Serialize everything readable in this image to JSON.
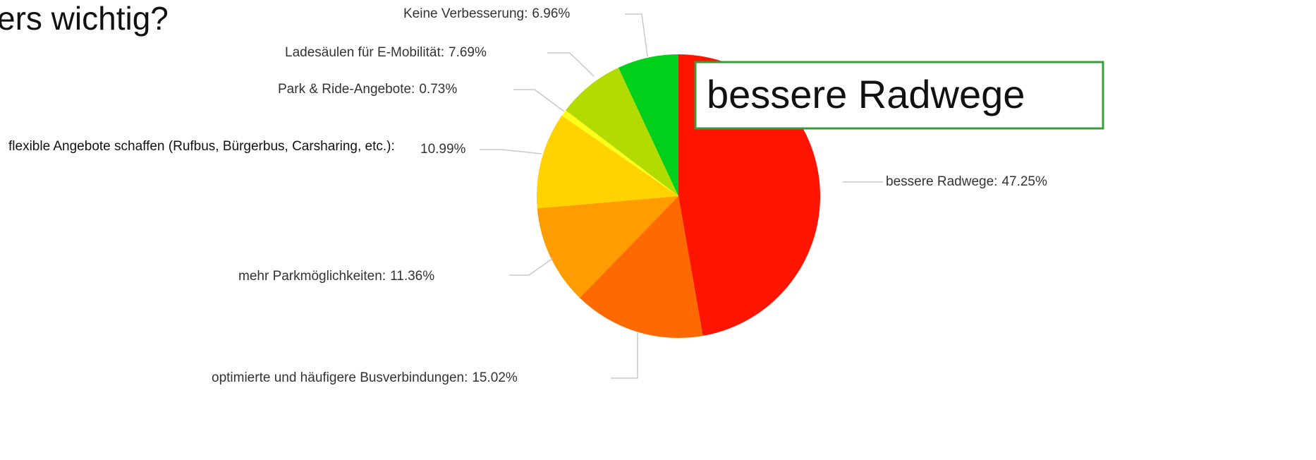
{
  "heading": "ers wichtig?",
  "callout": "bessere Radwege",
  "chart_data": {
    "type": "pie",
    "categories": [
      "bessere Radwege:",
      "optimierte und häufigere Busverbindungen:",
      "mehr Parkmöglichkeiten:",
      "flexible Angebote schaffen (Rufbus, Bürgerbus, Carsharing, etc.):",
      "Park & Ride-Angebote:",
      "Ladesäulen für E-Mobilität:",
      "Keine Verbesserung:"
    ],
    "values": [
      47.25,
      15.02,
      11.36,
      10.99,
      0.73,
      7.69,
      6.96
    ],
    "value_labels": [
      "47.25%",
      "15.02%",
      "11.36%",
      "10.99%",
      "0.73%",
      "7.69%",
      "6.96%"
    ],
    "colors": [
      "#ff1400",
      "#ff6a00",
      "#ff9c00",
      "#ffd200",
      "#ffff1a",
      "#b2dc00",
      "#00cf1c"
    ]
  }
}
